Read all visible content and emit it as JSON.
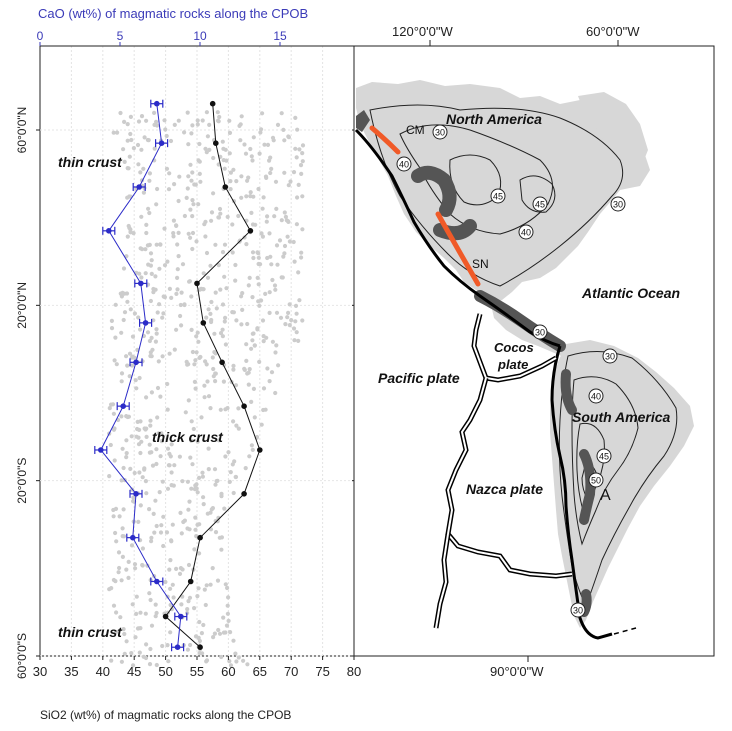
{
  "figure": {
    "top_axis_title": "CaO (wt%) of  magmatic rocks along the CPOB",
    "bottom_axis_title": "SiO2 (wt%) of  magmatic rocks along the CPOB",
    "top_ticks": [
      "0",
      "5",
      "10",
      "15"
    ],
    "bottom_ticks": [
      "30",
      "35",
      "40",
      "45",
      "50",
      "55",
      "60",
      "65",
      "70",
      "75",
      "80"
    ],
    "lat_ticks": [
      "60°0'0\"N",
      "20°0'0\"N",
      "20°0'0\"S",
      "60°0'0\"S"
    ],
    "crust_labels": [
      "thin crust",
      "thick crust",
      "thin crust"
    ],
    "lon_ticks_top": [
      "120°0'0\"W",
      "60°0'0\"W"
    ],
    "lon_tick_bottom": "90°0'0\"W",
    "map_labels": {
      "north_america": "North America",
      "south_america": "South America",
      "atlantic": "Atlantic Ocean",
      "pacific_plate": "Pacific plate",
      "cocos_plate": "Cocos\nplate",
      "nazca_plate": "Nazca plate",
      "cm": "CM",
      "sn": "SN",
      "a": "A"
    },
    "contours": [
      "30",
      "40",
      "45",
      "45",
      "40",
      "30",
      "30",
      "30",
      "40",
      "45",
      "50",
      "30"
    ],
    "colors": {
      "cao_series": "#2b2bc8",
      "sio2_series": "#111111",
      "gray_points": "#cccccc",
      "land": "#d7d7d7",
      "arc_dark": "#555555",
      "arc_red": "#f05a28"
    }
  },
  "chart_data": {
    "type": "line",
    "title": "",
    "xlabel": "SiO2 (wt%) of  magmatic rocks along the CPOB",
    "x2label": "CaO (wt%) of  magmatic rocks along the CPOB",
    "xlim": [
      30,
      80
    ],
    "x2lim": [
      0,
      15
    ],
    "y_ticks": [
      "60°0'0\"N",
      "20°0'0\"N",
      "20°0'0\"S",
      "60°0'0\"S"
    ],
    "series": [
      {
        "axis": "bottom",
        "lat": [
          66,
          57,
          47,
          37,
          25,
          16,
          7,
          -3,
          -13,
          -23,
          -33,
          -43,
          -51,
          -58
        ],
        "values": [
          57.5,
          58.0,
          59.5,
          63.5,
          55.0,
          56.0,
          59.0,
          62.5,
          65.0,
          62.5,
          55.5,
          54.0,
          50.0,
          55.5
        ]
      },
      {
        "axis": "top",
        "lat": [
          66,
          57,
          47,
          37,
          25,
          16,
          7,
          -3,
          -13,
          -23,
          -33,
          -43,
          -51,
          -58
        ],
        "values": [
          7.3,
          7.6,
          6.2,
          4.3,
          6.3,
          6.6,
          6.0,
          5.2,
          3.8,
          6.0,
          5.8,
          7.3,
          8.8,
          8.6
        ]
      }
    ]
  }
}
